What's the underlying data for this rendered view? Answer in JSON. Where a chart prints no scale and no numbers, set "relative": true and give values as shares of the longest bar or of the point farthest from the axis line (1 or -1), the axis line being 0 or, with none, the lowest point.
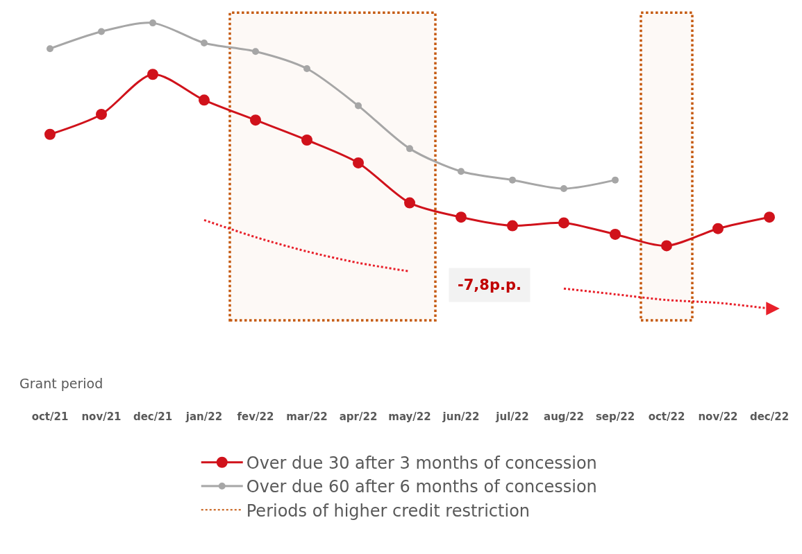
{
  "chart_data": {
    "type": "line",
    "relative": true,
    "xlabel": "Grant period",
    "categories": [
      "oct/21",
      "nov/21",
      "dec/21",
      "jan/22",
      "fev/22",
      "mar/22",
      "apr/22",
      "may/22",
      "jun/22",
      "jul/22",
      "aug/22",
      "sep/22",
      "oct/22",
      "nov/22",
      "dec/22"
    ],
    "series": [
      {
        "name": "Over due 30 after 3 months of concession",
        "color": "#d0121b",
        "values": [
          0.61,
          0.68,
          0.82,
          0.73,
          0.66,
          0.59,
          0.51,
          0.37,
          0.32,
          0.29,
          0.3,
          0.26,
          0.22,
          0.28,
          0.32
        ]
      },
      {
        "name": "Over due 60 after 6 months of concession",
        "color": "#a6a6a6",
        "values": [
          0.91,
          0.97,
          1.0,
          0.93,
          0.9,
          0.84,
          0.71,
          0.56,
          0.48,
          0.45,
          0.42,
          0.45,
          null,
          null,
          null
        ]
      },
      {
        "type": "line",
        "color": "#e8202a",
        "line_style": "dotted",
        "marker": "none",
        "x": [
          "jan/22",
          "fev/22",
          "mar/22",
          "apr/22",
          "may/22",
          "jun/22",
          "jul/22",
          "aug/22",
          "sep/22",
          "oct/22",
          "nov/22",
          "dec/22"
        ],
        "values": [
          0.31,
          0.25,
          0.2,
          0.16,
          0.13,
          null,
          null,
          0.07,
          0.05,
          0.03,
          0.02,
          0
        ]
      }
    ],
    "bands": [
      {
        "axis": "x",
        "from": "fev/22",
        "to": "may/22",
        "label": "Periods of higher credit restriction",
        "color": "#c55a11"
      },
      {
        "axis": "x",
        "from": "oct/22",
        "to": "oct/22",
        "color": "#c55a11"
      }
    ],
    "annotations": [
      "-7,8p.p."
    ],
    "marker": "circle",
    "legend": "bottom",
    "grid": false
  }
}
